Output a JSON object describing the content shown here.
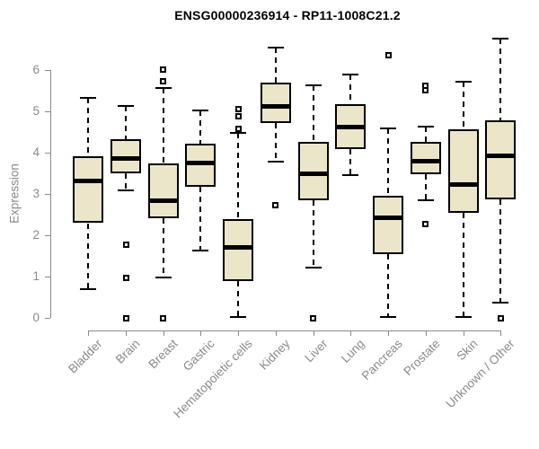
{
  "title": "ENSG00000236914 - RP11-1008C21.2",
  "chart_data": {
    "type": "boxplot",
    "title": "ENSG00000236914 - RP11-1008C21.2",
    "ylabel": "Expression",
    "xlabel": "",
    "ylim": [
      0,
      6.8
    ],
    "yticks": [
      0,
      1,
      2,
      3,
      4,
      5,
      6
    ],
    "grid": false,
    "legend": "none",
    "box_fill_color": "#EBE6CA",
    "box_border_color": "#000000",
    "axis_color": "#8a8a8a",
    "label_color": "#8a8a8a",
    "categories": [
      "Bladder",
      "Brain",
      "Breast",
      "Gastric",
      "Hematopoietic cells",
      "Kidney",
      "Liver",
      "Lung",
      "Pancreas",
      "Prostate",
      "Skin",
      "Unknown / Other"
    ],
    "series": [
      {
        "category": "Bladder",
        "whisker_low": 0.7,
        "q1": 2.3,
        "median": 3.32,
        "q3": 3.93,
        "whisker_high": 5.33,
        "outliers": []
      },
      {
        "category": "Brain",
        "whisker_low": 3.1,
        "q1": 3.5,
        "median": 3.87,
        "q3": 4.33,
        "whisker_high": 5.13,
        "outliers": [
          1.78,
          0.98,
          0.0
        ]
      },
      {
        "category": "Breast",
        "whisker_low": 0.98,
        "q1": 2.43,
        "median": 2.85,
        "q3": 3.74,
        "whisker_high": 5.57,
        "outliers": [
          6.02,
          5.73,
          0.0
        ]
      },
      {
        "category": "Gastric",
        "whisker_low": 1.63,
        "q1": 3.19,
        "median": 3.75,
        "q3": 4.22,
        "whisker_high": 5.03,
        "outliers": []
      },
      {
        "category": "Hematopoietic cells",
        "whisker_low": 0.02,
        "q1": 0.9,
        "median": 1.72,
        "q3": 2.39,
        "whisker_high": 4.48,
        "outliers": [
          5.07,
          4.88,
          4.59
        ]
      },
      {
        "category": "Kidney",
        "whisker_low": 3.79,
        "q1": 4.73,
        "median": 5.13,
        "q3": 5.71,
        "whisker_high": 6.56,
        "outliers": [
          2.74
        ]
      },
      {
        "category": "Liver",
        "whisker_low": 1.22,
        "q1": 2.86,
        "median": 3.49,
        "q3": 4.27,
        "whisker_high": 5.64,
        "outliers": [
          0.0
        ]
      },
      {
        "category": "Lung",
        "whisker_low": 3.46,
        "q1": 4.09,
        "median": 4.62,
        "q3": 5.18,
        "whisker_high": 5.9,
        "outliers": []
      },
      {
        "category": "Pancreas",
        "whisker_low": 0.02,
        "q1": 1.54,
        "median": 2.43,
        "q3": 2.96,
        "whisker_high": 4.59,
        "outliers": [
          6.36
        ]
      },
      {
        "category": "Prostate",
        "whisker_low": 2.85,
        "q1": 3.49,
        "median": 3.79,
        "q3": 4.26,
        "whisker_high": 4.64,
        "outliers": [
          5.62,
          5.51,
          2.27
        ]
      },
      {
        "category": "Skin",
        "whisker_low": 0.02,
        "q1": 2.56,
        "median": 3.24,
        "q3": 4.57,
        "whisker_high": 5.73,
        "outliers": []
      },
      {
        "category": "Unknown / Other",
        "whisker_low": 0.37,
        "q1": 2.88,
        "median": 3.93,
        "q3": 4.78,
        "whisker_high": 6.77,
        "outliers": [
          0.0
        ]
      }
    ]
  }
}
